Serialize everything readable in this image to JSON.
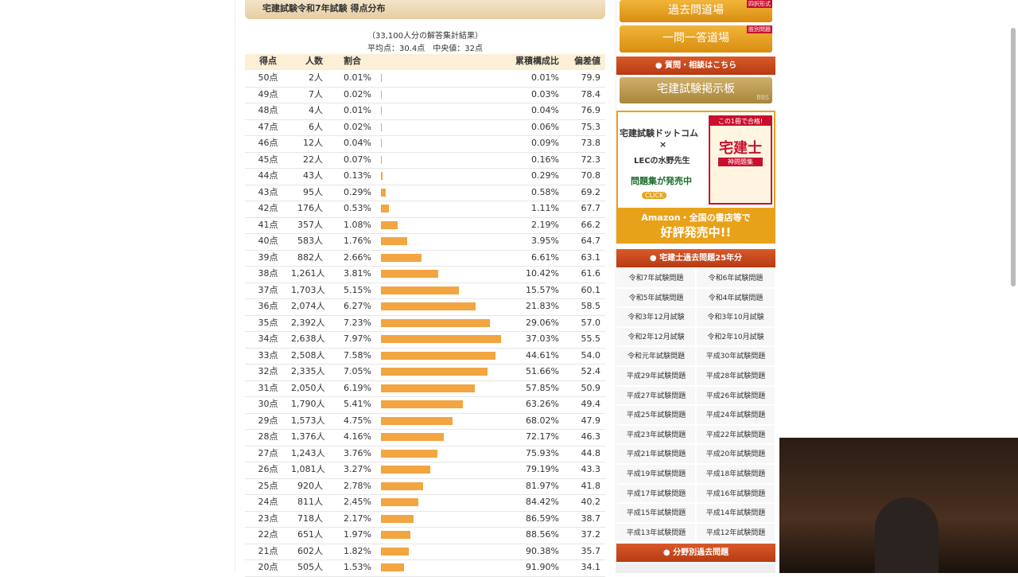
{
  "main": {
    "title": "宅建試験令和7年試験 得点分布",
    "note": "（33,100人分の解答集計結果）",
    "summary": "平均点：30.4点　中央値：32点",
    "table": {
      "headers": [
        "得点",
        "人数",
        "割合",
        "累積構成比",
        "偏差値"
      ],
      "rows": [
        [
          "50点",
          "2人",
          "0.01%",
          "0.01%",
          "79.9"
        ],
        [
          "49点",
          "7人",
          "0.02%",
          "0.03%",
          "78.4"
        ],
        [
          "48点",
          "4人",
          "0.01%",
          "0.04%",
          "76.9"
        ],
        [
          "47点",
          "6人",
          "0.02%",
          "0.06%",
          "75.3"
        ],
        [
          "46点",
          "12人",
          "0.04%",
          "0.09%",
          "73.8"
        ],
        [
          "45点",
          "22人",
          "0.07%",
          "0.16%",
          "72.3"
        ],
        [
          "44点",
          "43人",
          "0.13%",
          "0.29%",
          "70.8"
        ],
        [
          "43点",
          "95人",
          "0.29%",
          "0.58%",
          "69.2"
        ],
        [
          "42点",
          "176人",
          "0.53%",
          "1.11%",
          "67.7"
        ],
        [
          "41点",
          "357人",
          "1.08%",
          "2.19%",
          "66.2"
        ],
        [
          "40点",
          "583人",
          "1.76%",
          "3.95%",
          "64.7"
        ],
        [
          "39点",
          "882人",
          "2.66%",
          "6.61%",
          "63.1"
        ],
        [
          "38点",
          "1,261人",
          "3.81%",
          "10.42%",
          "61.6"
        ],
        [
          "37点",
          "1,703人",
          "5.15%",
          "15.57%",
          "60.1"
        ],
        [
          "36点",
          "2,074人",
          "6.27%",
          "21.83%",
          "58.5"
        ],
        [
          "35点",
          "2,392人",
          "7.23%",
          "29.06%",
          "57.0"
        ],
        [
          "34点",
          "2,638人",
          "7.97%",
          "37.03%",
          "55.5"
        ],
        [
          "33点",
          "2,508人",
          "7.58%",
          "44.61%",
          "54.0"
        ],
        [
          "32点",
          "2,335人",
          "7.05%",
          "51.66%",
          "52.4"
        ],
        [
          "31点",
          "2,050人",
          "6.19%",
          "57.85%",
          "50.9"
        ],
        [
          "30点",
          "1,790人",
          "5.41%",
          "63.26%",
          "49.4"
        ],
        [
          "29点",
          "1,573人",
          "4.75%",
          "68.02%",
          "47.9"
        ],
        [
          "28点",
          "1,376人",
          "4.16%",
          "72.17%",
          "46.3"
        ],
        [
          "27点",
          "1,243人",
          "3.76%",
          "75.93%",
          "44.8"
        ],
        [
          "26点",
          "1,081人",
          "3.27%",
          "79.19%",
          "43.3"
        ],
        [
          "25点",
          "920人",
          "2.78%",
          "81.97%",
          "41.8"
        ],
        [
          "24点",
          "811人",
          "2.45%",
          "84.42%",
          "40.2"
        ],
        [
          "23点",
          "718人",
          "2.17%",
          "86.59%",
          "38.7"
        ],
        [
          "22点",
          "651人",
          "1.97%",
          "88.56%",
          "37.2"
        ],
        [
          "21点",
          "602人",
          "1.82%",
          "90.38%",
          "35.7"
        ],
        [
          "20点",
          "505人",
          "1.53%",
          "91.90%",
          "34.1"
        ]
      ]
    }
  },
  "sidebar": {
    "buttons": [
      {
        "label": "過去問道場",
        "tag": "四択形式"
      },
      {
        "label": "一問一答道場",
        "tag": "肢別問題"
      }
    ],
    "consult": "質問・相談はこちら",
    "bbs": {
      "label": "宅建試験掲示板",
      "tag": "BBS"
    },
    "ad": {
      "line1": "宅建試験ドットコム",
      "cross": "×",
      "line2": "LECの水野先生",
      "line3": "問題集が発売中",
      "click": "CLICK",
      "badge": "この1冊で合格!",
      "book": "宅建士",
      "book_sub": "神問題集",
      "bottom1": "Amazon・全国の書店等で",
      "bottom2": "好評発売中!!"
    },
    "past_title": "宅建士過去問題25年分",
    "past": [
      "令和7年試験問題",
      "令和6年試験問題",
      "令和5年試験問題",
      "令和4年試験問題",
      "令和3年12月試験",
      "令和3年10月試験",
      "令和2年12月試験",
      "令和2年10月試験",
      "令和元年試験問題",
      "平成30年試験問題",
      "平成29年試験問題",
      "平成28年試験問題",
      "平成27年試験問題",
      "平成26年試験問題",
      "平成25年試験問題",
      "平成24年試験問題",
      "平成23年試験問題",
      "平成22年試験問題",
      "平成21年試験問題",
      "平成20年試験問題",
      "平成19年試験問題",
      "平成18年試験問題",
      "平成17年試験問題",
      "平成16年試験問題",
      "平成15年試験問題",
      "平成14年試験問題",
      "平成13年試験問題",
      "平成12年試験問題"
    ],
    "field_title": "分野別過去問題"
  }
}
